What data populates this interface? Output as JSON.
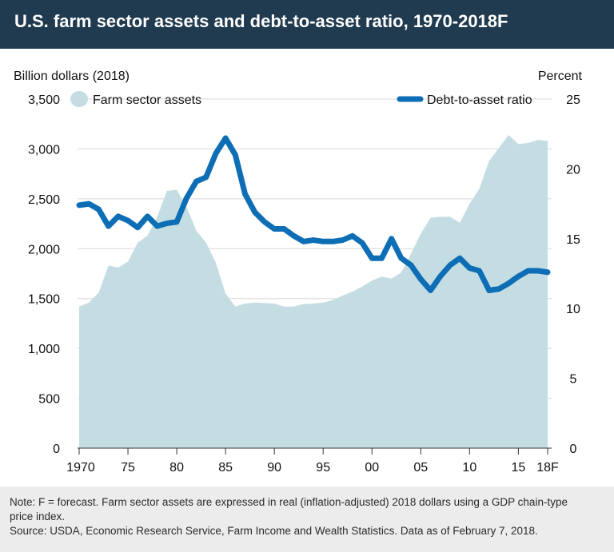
{
  "header": {
    "title": "U.S. farm sector assets and debt-to-asset ratio, 1970-2018F"
  },
  "colors": {
    "header_bg": "#203a4f",
    "assets_fill": "#c4dde3",
    "ratio_line": "#0d6eb5",
    "grid": "#d8d8d8",
    "footer_bg": "#ececec"
  },
  "chart_data": {
    "type": "area+line",
    "title": "U.S. farm sector assets and debt-to-asset ratio, 1970-2018F",
    "left_axis": {
      "label": "Billion dollars (2018)",
      "min": 0,
      "max": 3500,
      "ticks": [
        0,
        500,
        1000,
        1500,
        2000,
        2500,
        3000,
        3500
      ],
      "tick_labels": [
        "0",
        "500",
        "1,000",
        "1,500",
        "2,000",
        "2,500",
        "3,000",
        "3,500"
      ]
    },
    "right_axis": {
      "label": "Percent",
      "min": 0,
      "max": 25,
      "ticks": [
        0,
        5,
        10,
        15,
        20,
        25
      ],
      "tick_labels": [
        "0",
        "5",
        "10",
        "15",
        "20",
        "25"
      ]
    },
    "x_axis": {
      "min": 1970,
      "max": 2018,
      "ticks": [
        1970,
        1975,
        1980,
        1985,
        1990,
        1995,
        2000,
        2005,
        2010,
        2015,
        2018
      ],
      "tick_labels": [
        "1970",
        "75",
        "80",
        "85",
        "90",
        "95",
        "00",
        "05",
        "10",
        "15",
        "18F"
      ]
    },
    "years": [
      1970,
      1971,
      1972,
      1973,
      1974,
      1975,
      1976,
      1977,
      1978,
      1979,
      1980,
      1981,
      1982,
      1983,
      1984,
      1985,
      1986,
      1987,
      1988,
      1989,
      1990,
      1991,
      1992,
      1993,
      1994,
      1995,
      1996,
      1997,
      1998,
      1999,
      2000,
      2001,
      2002,
      2003,
      2004,
      2005,
      2006,
      2007,
      2008,
      2009,
      2010,
      2011,
      2012,
      2013,
      2014,
      2015,
      2016,
      2017,
      2018
    ],
    "series": [
      {
        "name": "Farm sector assets",
        "kind": "area",
        "axis": "left",
        "values": [
          1420,
          1460,
          1560,
          1830,
          1810,
          1870,
          2060,
          2130,
          2320,
          2580,
          2590,
          2420,
          2180,
          2060,
          1860,
          1550,
          1420,
          1450,
          1460,
          1455,
          1450,
          1420,
          1420,
          1445,
          1450,
          1460,
          1485,
          1530,
          1570,
          1620,
          1680,
          1720,
          1700,
          1760,
          1950,
          2150,
          2310,
          2320,
          2320,
          2260,
          2450,
          2600,
          2880,
          3010,
          3140,
          3050,
          3060,
          3090,
          3080
        ]
      },
      {
        "name": "Debt-to-asset ratio",
        "kind": "line",
        "axis": "right",
        "values": [
          17.4,
          17.5,
          17.1,
          15.9,
          16.6,
          16.3,
          15.8,
          16.6,
          15.9,
          16.1,
          16.2,
          17.9,
          19.1,
          19.4,
          21.1,
          22.2,
          21.0,
          18.2,
          16.9,
          16.2,
          15.7,
          15.7,
          15.2,
          14.8,
          14.9,
          14.8,
          14.8,
          14.9,
          15.2,
          14.7,
          13.6,
          13.6,
          15.0,
          13.6,
          13.1,
          12.1,
          11.3,
          12.3,
          13.1,
          13.6,
          12.9,
          12.7,
          11.3,
          11.4,
          11.8,
          12.3,
          12.7,
          12.7,
          12.6
        ]
      }
    ],
    "legend": {
      "assets_label": "Farm sector assets",
      "ratio_label": "Debt-to-asset ratio",
      "placement": "top"
    }
  },
  "footer": {
    "note_line1": "Note: F = forecast. Farm sector assets are expressed in real (inflation-adjusted) 2018 dollars using a GDP chain-type",
    "note_line2": "price index.",
    "source_line": "Source: USDA, Economic Research Service, Farm Income and Wealth Statistics. Data as of February 7, 2018."
  }
}
